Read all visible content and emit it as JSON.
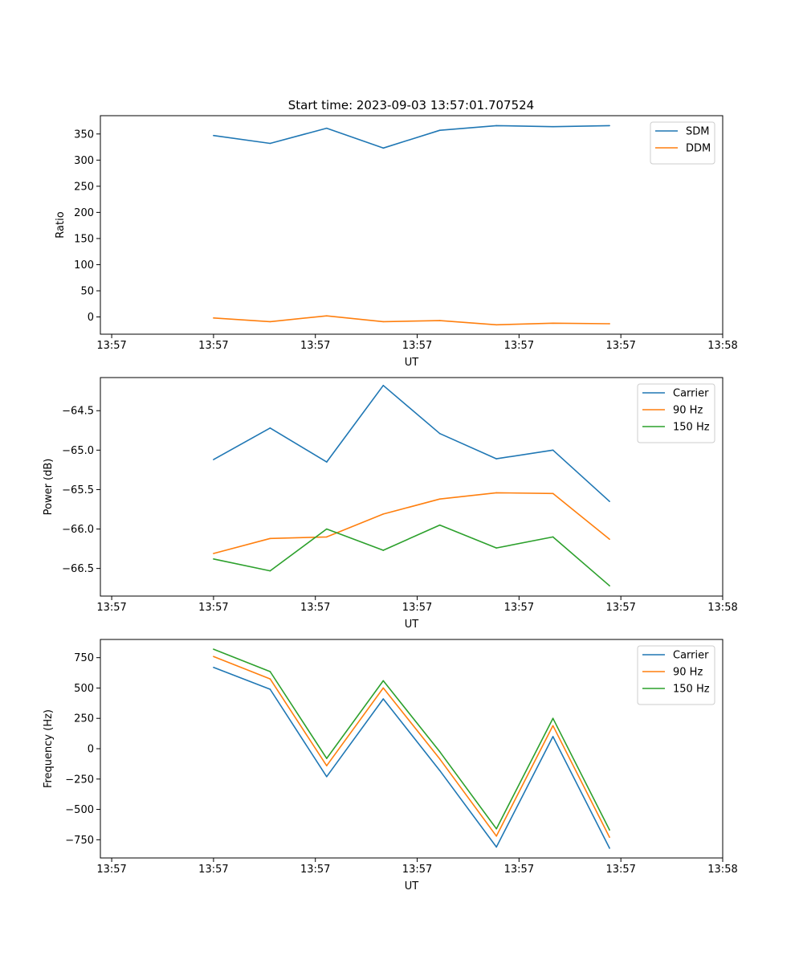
{
  "figure": {
    "title": "Start time: 2023-09-03 13:57:01.707524"
  },
  "chart_data": [
    {
      "type": "line",
      "title": "Start time: 2023-09-03 13:57:01.707524",
      "xlabel": "UT",
      "ylabel": "Ratio",
      "x": [
        0.4,
        0.6,
        0.8,
        1.0,
        1.2,
        1.4,
        1.6,
        1.8
      ],
      "xlim": [
        0.0,
        2.2
      ],
      "xticks": [
        0.04,
        0.4,
        0.76,
        1.12,
        1.48,
        1.84,
        2.2
      ],
      "xtick_labels": [
        "13:57",
        "13:57",
        "13:57",
        "13:57",
        "13:57",
        "13:57",
        "13:58"
      ],
      "ylim": [
        -33,
        385
      ],
      "yticks": [
        0,
        50,
        100,
        150,
        200,
        250,
        300,
        350
      ],
      "ytick_labels": [
        "0",
        "50",
        "100",
        "150",
        "200",
        "250",
        "300",
        "350"
      ],
      "legend_loc": "top-right",
      "series": [
        {
          "name": "SDM",
          "color": "#1f77b4",
          "values": [
            347,
            332,
            361,
            323,
            357,
            366,
            364,
            366
          ]
        },
        {
          "name": "DDM",
          "color": "#ff7f0e",
          "values": [
            -2,
            -9,
            2,
            -9,
            -7,
            -15,
            -12,
            -13
          ]
        }
      ]
    },
    {
      "type": "line",
      "title": "",
      "xlabel": "UT",
      "ylabel": "Power (dB)",
      "x": [
        0.4,
        0.6,
        0.8,
        1.0,
        1.2,
        1.4,
        1.6,
        1.8
      ],
      "xlim": [
        0.0,
        2.2
      ],
      "xticks": [
        0.04,
        0.4,
        0.76,
        1.12,
        1.48,
        1.84,
        2.2
      ],
      "xtick_labels": [
        "13:57",
        "13:57",
        "13:57",
        "13:57",
        "13:57",
        "13:57",
        "13:58"
      ],
      "ylim": [
        -66.85,
        -64.08
      ],
      "yticks": [
        -66.5,
        -66.0,
        -65.5,
        -65.0,
        -64.5
      ],
      "ytick_labels": [
        "−66.5",
        "−66.0",
        "−65.5",
        "−65.0",
        "−64.5"
      ],
      "legend_loc": "top-right",
      "series": [
        {
          "name": "Carrier",
          "color": "#1f77b4",
          "values": [
            -65.12,
            -64.72,
            -65.15,
            -64.18,
            -64.79,
            -65.11,
            -65.0,
            -65.65
          ]
        },
        {
          "name": "90 Hz",
          "color": "#ff7f0e",
          "values": [
            -66.31,
            -66.12,
            -66.1,
            -65.81,
            -65.62,
            -65.54,
            -65.55,
            -66.13
          ]
        },
        {
          "name": "150 Hz",
          "color": "#2ca02c",
          "values": [
            -66.38,
            -66.53,
            -66.0,
            -66.27,
            -65.95,
            -66.24,
            -66.1,
            -66.72
          ]
        }
      ]
    },
    {
      "type": "line",
      "title": "",
      "xlabel": "UT",
      "ylabel": "Frequency (Hz)",
      "x": [
        0.4,
        0.6,
        0.8,
        1.0,
        1.2,
        1.4,
        1.6,
        1.8
      ],
      "xlim": [
        0.0,
        2.2
      ],
      "xticks": [
        0.04,
        0.4,
        0.76,
        1.12,
        1.48,
        1.84,
        2.2
      ],
      "xtick_labels": [
        "13:57",
        "13:57",
        "13:57",
        "13:57",
        "13:57",
        "13:57",
        "13:58"
      ],
      "ylim": [
        -900,
        900
      ],
      "yticks": [
        -750,
        -500,
        -250,
        0,
        250,
        500,
        750
      ],
      "ytick_labels": [
        "−750",
        "−500",
        "−250",
        "0",
        "250",
        "500",
        "750"
      ],
      "legend_loc": "top-right",
      "series": [
        {
          "name": "Carrier",
          "color": "#1f77b4",
          "values": [
            670,
            490,
            -230,
            410,
            -180,
            -810,
            100,
            -820
          ]
        },
        {
          "name": "90 Hz",
          "color": "#ff7f0e",
          "values": [
            760,
            575,
            -140,
            500,
            -85,
            -720,
            190,
            -730
          ]
        },
        {
          "name": "150 Hz",
          "color": "#2ca02c",
          "values": [
            820,
            635,
            -80,
            560,
            -25,
            -660,
            250,
            -670
          ]
        }
      ]
    }
  ]
}
